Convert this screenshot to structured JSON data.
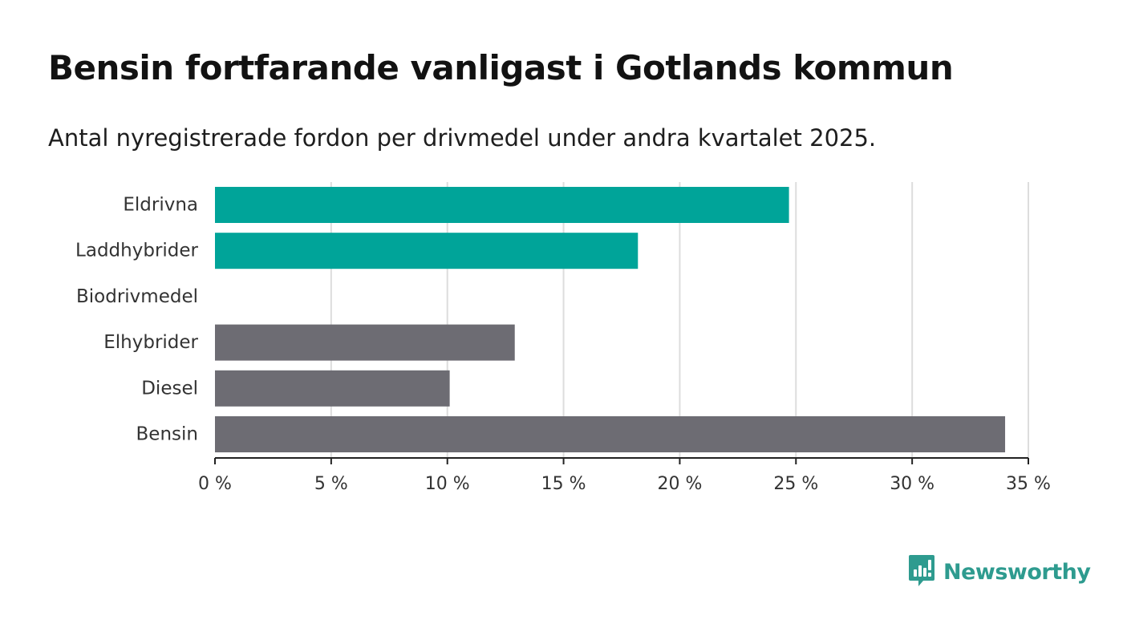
{
  "title": "Bensin fortfarande vanligast i Gotlands kommun",
  "subtitle": "Antal nyregistrerade fordon per drivmedel under andra kvartalet 2025.",
  "brand": {
    "name": "Newsworthy",
    "icon": "newsworthy-logo-icon",
    "color": "#2e9b8f"
  },
  "colors": {
    "highlight": "#00a499",
    "default": "#6d6c73",
    "grid": "#dddddd",
    "axis": "#222222"
  },
  "chart_data": {
    "type": "bar",
    "orientation": "horizontal",
    "categories": [
      "Eldrivna",
      "Laddhybrider",
      "Biodrivmedel",
      "Elhybrider",
      "Diesel",
      "Bensin"
    ],
    "values": [
      24.7,
      18.2,
      0,
      12.9,
      10.1,
      34.0
    ],
    "bar_colors": [
      "#00a499",
      "#00a499",
      "#00a499",
      "#6d6c73",
      "#6d6c73",
      "#6d6c73"
    ],
    "xlim": [
      0,
      35
    ],
    "xticks": [
      0,
      5,
      10,
      15,
      20,
      25,
      30,
      35
    ],
    "xtick_labels": [
      "0 %",
      "5 %",
      "10 %",
      "15 %",
      "20 %",
      "25 %",
      "30 %",
      "35 %"
    ],
    "grid": true,
    "xlabel": "",
    "ylabel": ""
  }
}
